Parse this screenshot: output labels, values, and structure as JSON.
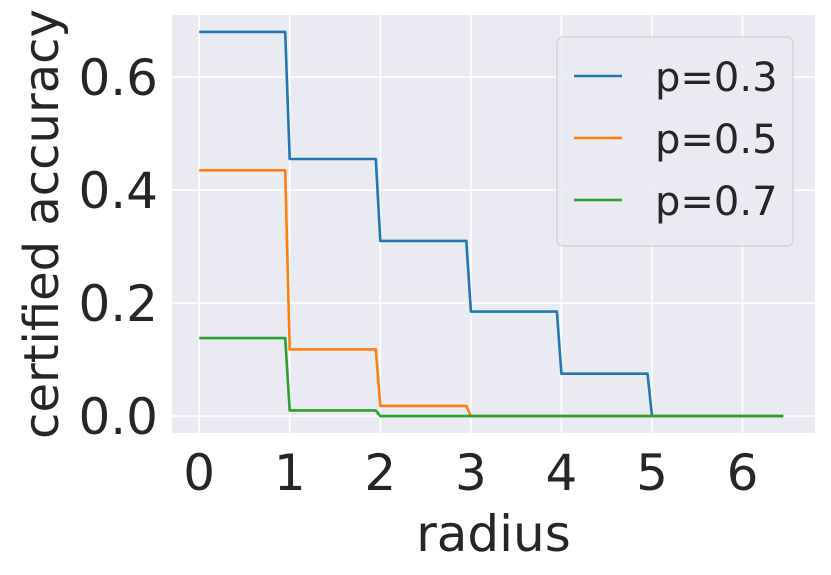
{
  "chart_data": {
    "type": "line",
    "xlabel": "radius",
    "ylabel": "certified accuracy",
    "xlim": [
      -0.3,
      6.8
    ],
    "ylim": [
      -0.03,
      0.71
    ],
    "xticks": [
      0,
      1,
      2,
      3,
      4,
      5,
      6
    ],
    "yticks": [
      0.0,
      0.2,
      0.4,
      0.6
    ],
    "ytick_labels": [
      "0.0",
      "0.2",
      "0.4",
      "0.6"
    ],
    "grid": true,
    "legend_position": "top-right",
    "background_color": "#eaeaf2",
    "series": [
      {
        "name": "p=0.3",
        "color": "#1f77b4",
        "x": [
          0,
          0.95,
          1.0,
          1.95,
          2.0,
          2.95,
          3.0,
          3.95,
          4.0,
          4.95,
          5.0,
          6.45
        ],
        "y": [
          0.68,
          0.68,
          0.455,
          0.455,
          0.31,
          0.31,
          0.185,
          0.185,
          0.075,
          0.075,
          0.0,
          0.0
        ]
      },
      {
        "name": "p=0.5",
        "color": "#ff7f0e",
        "x": [
          0,
          0.95,
          1.0,
          1.95,
          2.0,
          2.95,
          3.0,
          6.45
        ],
        "y": [
          0.435,
          0.435,
          0.118,
          0.118,
          0.018,
          0.018,
          0.0,
          0.0
        ]
      },
      {
        "name": "p=0.7",
        "color": "#2ca02c",
        "x": [
          0,
          0.95,
          1.0,
          1.95,
          2.0,
          6.45
        ],
        "y": [
          0.138,
          0.138,
          0.01,
          0.01,
          0.0,
          0.0
        ]
      }
    ]
  }
}
